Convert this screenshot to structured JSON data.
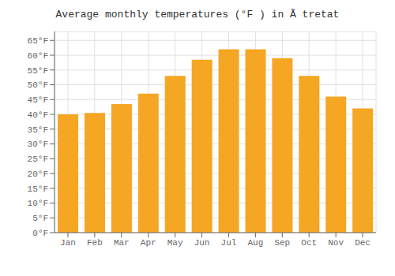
{
  "chart_data": {
    "type": "bar",
    "title": "Average monthly temperatures (°F ) in Ã tretat",
    "categories": [
      "Jan",
      "Feb",
      "Mar",
      "Apr",
      "May",
      "Jun",
      "Jul",
      "Aug",
      "Sep",
      "Oct",
      "Nov",
      "Dec"
    ],
    "values": [
      40,
      40.5,
      43.5,
      47,
      53,
      58.5,
      62,
      62,
      59,
      53,
      46,
      42
    ],
    "color": "#F5A623",
    "ylim": [
      0,
      68
    ],
    "yticks": [
      {
        "value": 0,
        "label": "0°F"
      },
      {
        "value": 5,
        "label": "5°F"
      },
      {
        "value": 10,
        "label": "10°F"
      },
      {
        "value": 15,
        "label": "15°F"
      },
      {
        "value": 20,
        "label": "20°F"
      },
      {
        "value": 25,
        "label": "25°F"
      },
      {
        "value": 30,
        "label": "30°F"
      },
      {
        "value": 35,
        "label": "35°F"
      },
      {
        "value": 40,
        "label": "40°F"
      },
      {
        "value": 45,
        "label": "45°F"
      },
      {
        "value": 50,
        "label": "50°F"
      },
      {
        "value": 55,
        "label": "55°F"
      },
      {
        "value": 60,
        "label": "60°F"
      },
      {
        "value": 65,
        "label": "65°F"
      }
    ],
    "grid": true
  }
}
